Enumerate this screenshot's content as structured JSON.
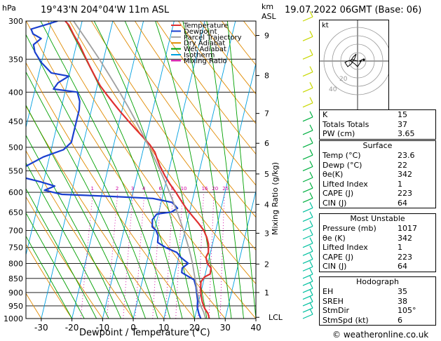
{
  "header": {
    "pressure_unit": "hPa",
    "location": "19°43'N  204°04'W  11m  ASL",
    "height_unit": "km",
    "height_unit2": "ASL",
    "datetime": "19.07.2022  06GMT  (Base: 06)"
  },
  "legend": {
    "items": [
      {
        "label": "Temperature",
        "color": "#e03030"
      },
      {
        "label": "Dewpoint",
        "color": "#1a3fcf"
      },
      {
        "label": "Parcel Trajectory",
        "color": "#a0a0a0"
      },
      {
        "label": "Dry Adiabat",
        "color": "#e08a00"
      },
      {
        "label": "Wet Adiabat",
        "color": "#00a000"
      },
      {
        "label": "Isotherm",
        "color": "#00a0e0"
      },
      {
        "label": "Mixing Ratio",
        "color": "#d000a0"
      }
    ]
  },
  "chart_data": {
    "type": "line",
    "title": "",
    "xlabel": "Dewpoint / Temperature (°C)",
    "ylabel": "Mixing Ratio (g/kg)",
    "x_ticks": [
      -30,
      -20,
      -10,
      0,
      10,
      20,
      30,
      40
    ],
    "xlim": [
      -35,
      40
    ],
    "pressure_levels": [
      300,
      350,
      400,
      450,
      500,
      550,
      600,
      650,
      700,
      750,
      800,
      850,
      900,
      950,
      1000
    ],
    "height_ticks": [
      {
        "label": "9",
        "p": 318
      },
      {
        "label": "8",
        "p": 374
      },
      {
        "label": "7",
        "p": 436
      },
      {
        "label": "6",
        "p": 492
      },
      {
        "label": "5",
        "p": 557
      },
      {
        "label": "4",
        "p": 630
      },
      {
        "label": "3",
        "p": 708
      },
      {
        "label": "2",
        "p": 802
      },
      {
        "label": "1",
        "p": 900
      },
      {
        "label": "LCL",
        "p": 995
      }
    ],
    "mixing_ratio_labels": [
      "1",
      "2",
      "3",
      "4",
      "6",
      "8",
      "10",
      "16",
      "20",
      "25"
    ],
    "series": [
      {
        "name": "Temperature",
        "color": "#e03030",
        "points": [
          [
            24.8,
            1000
          ],
          [
            24.0,
            980
          ],
          [
            22.5,
            960
          ],
          [
            21.2,
            935
          ],
          [
            20.3,
            910
          ],
          [
            19.6,
            885
          ],
          [
            19.2,
            862
          ],
          [
            20.0,
            845
          ],
          [
            21.6,
            835
          ],
          [
            21.4,
            815
          ],
          [
            19.8,
            800
          ],
          [
            18.9,
            780
          ],
          [
            19.3,
            765
          ],
          [
            18.7,
            740
          ],
          [
            17.6,
            720
          ],
          [
            16.1,
            700
          ],
          [
            13.8,
            680
          ],
          [
            11.2,
            660
          ],
          [
            8.6,
            640
          ],
          [
            6.3,
            620
          ],
          [
            4.0,
            600
          ],
          [
            1.4,
            580
          ],
          [
            -1.0,
            560
          ],
          [
            -3.2,
            540
          ],
          [
            -4.6,
            525
          ],
          [
            -6.0,
            510
          ],
          [
            -8.2,
            495
          ],
          [
            -11.0,
            480
          ],
          [
            -14.0,
            465
          ],
          [
            -17.0,
            450
          ],
          [
            -20.0,
            435
          ],
          [
            -23.0,
            420
          ],
          [
            -26.0,
            405
          ],
          [
            -29.0,
            390
          ],
          [
            -31.5,
            375
          ],
          [
            -34.0,
            360
          ],
          [
            -36.5,
            345
          ],
          [
            -39.0,
            330
          ],
          [
            -41.5,
            318
          ],
          [
            -44.0,
            305
          ],
          [
            -45.5,
            300
          ]
        ]
      },
      {
        "name": "Dewpoint",
        "color": "#1a3fcf",
        "points": [
          [
            22.0,
            1000
          ],
          [
            21.0,
            980
          ],
          [
            20.0,
            955
          ],
          [
            19.6,
            930
          ],
          [
            18.8,
            905
          ],
          [
            18.0,
            880
          ],
          [
            16.8,
            855
          ],
          [
            14.0,
            840
          ],
          [
            12.2,
            830
          ],
          [
            12.0,
            815
          ],
          [
            13.6,
            800
          ],
          [
            10.6,
            780
          ],
          [
            9.0,
            765
          ],
          [
            5.0,
            750
          ],
          [
            2.0,
            735
          ],
          [
            1.6,
            715
          ],
          [
            0.5,
            700
          ],
          [
            -1.0,
            690
          ],
          [
            -1.5,
            670
          ],
          [
            -0.5,
            655
          ],
          [
            4.0,
            650
          ],
          [
            5.8,
            640
          ],
          [
            3.6,
            625
          ],
          [
            -3.0,
            615
          ],
          [
            -17.0,
            610
          ],
          [
            -33.0,
            605
          ],
          [
            -39.0,
            595
          ],
          [
            -36.0,
            585
          ],
          [
            -41.0,
            575
          ],
          [
            -50.0,
            560
          ],
          [
            -47.0,
            540
          ],
          [
            -42.0,
            520
          ],
          [
            -36.0,
            505
          ],
          [
            -34.0,
            490
          ],
          [
            -34.0,
            470
          ],
          [
            -34.0,
            450
          ],
          [
            -34.0,
            430
          ],
          [
            -34.5,
            415
          ],
          [
            -36.0,
            400
          ],
          [
            -44.0,
            395
          ],
          [
            -43.0,
            385
          ],
          [
            -40.0,
            375
          ],
          [
            -46.0,
            370
          ],
          [
            -50.0,
            355
          ],
          [
            -53.0,
            340
          ],
          [
            -54.0,
            330
          ],
          [
            -52.0,
            322
          ],
          [
            -55.0,
            316
          ],
          [
            -56.0,
            310
          ],
          [
            -52.0,
            305
          ],
          [
            -48.0,
            300
          ]
        ]
      },
      {
        "name": "Parcel Trajectory",
        "color": "#a0a0a0",
        "points": [
          [
            23.6,
            1000
          ],
          [
            22.5,
            975
          ],
          [
            21.0,
            950
          ],
          [
            19.8,
            925
          ],
          [
            18.9,
            900
          ],
          [
            18.0,
            875
          ],
          [
            17.0,
            850
          ],
          [
            16.0,
            825
          ],
          [
            15.0,
            800
          ],
          [
            13.8,
            775
          ],
          [
            12.5,
            750
          ],
          [
            11.0,
            725
          ],
          [
            9.5,
            700
          ],
          [
            7.8,
            675
          ],
          [
            6.0,
            650
          ],
          [
            4.0,
            625
          ],
          [
            1.9,
            600
          ],
          [
            -0.3,
            575
          ],
          [
            -2.8,
            550
          ],
          [
            -5.4,
            525
          ],
          [
            -8.2,
            500
          ],
          [
            -11.3,
            475
          ],
          [
            -14.6,
            450
          ],
          [
            -18.2,
            425
          ],
          [
            -22.2,
            400
          ],
          [
            -26.6,
            375
          ],
          [
            -31.4,
            350
          ],
          [
            -36.8,
            325
          ],
          [
            -42.8,
            300
          ]
        ]
      }
    ]
  },
  "hodograph": {
    "label": "kt",
    "ring_labels": [
      "20",
      "40"
    ]
  },
  "indices": {
    "rows": [
      {
        "label": "K",
        "value": "15"
      },
      {
        "label": "Totals Totals",
        "value": "37"
      },
      {
        "label": "PW (cm)",
        "value": "3.65"
      }
    ]
  },
  "surface": {
    "title": "Surface",
    "rows": [
      {
        "label": "Temp (°C)",
        "value": "23.6"
      },
      {
        "label": "Dewp (°C)",
        "value": "22"
      },
      {
        "label": "θe(K)",
        "value": "342"
      },
      {
        "label": "Lifted Index",
        "value": "1"
      },
      {
        "label": "CAPE (J)",
        "value": "223"
      },
      {
        "label": "CIN (J)",
        "value": "64"
      }
    ]
  },
  "most_unstable": {
    "title": "Most Unstable",
    "rows": [
      {
        "label": "Pressure (mb)",
        "value": "1017"
      },
      {
        "label": "θe (K)",
        "value": "342"
      },
      {
        "label": "Lifted Index",
        "value": "1"
      },
      {
        "label": "CAPE (J)",
        "value": "223"
      },
      {
        "label": "CIN (J)",
        "value": "64"
      }
    ]
  },
  "hodo_table": {
    "title": "Hodograph",
    "rows": [
      {
        "label": "EH",
        "value": "35"
      },
      {
        "label": "SREH",
        "value": "38"
      },
      {
        "label": "StmDir",
        "value": "105°"
      },
      {
        "label": "StmSpd (kt)",
        "value": "6"
      }
    ]
  },
  "credit": "© weatheronline.co.uk"
}
